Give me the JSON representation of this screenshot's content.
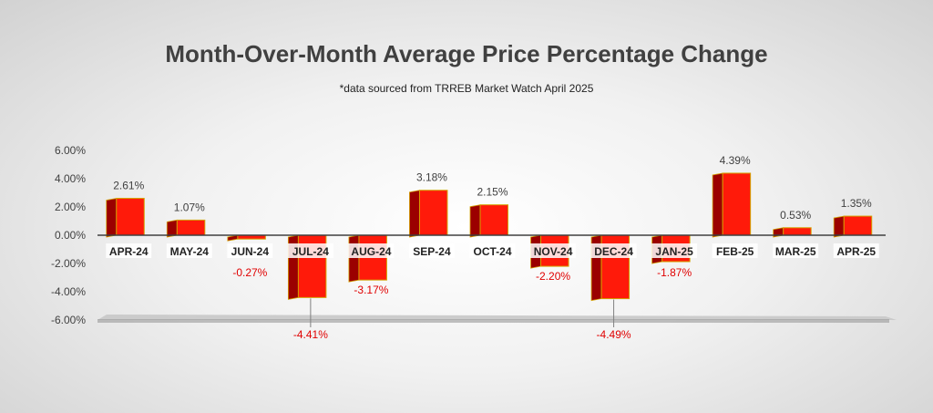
{
  "chart_data": {
    "type": "bar",
    "title": "Month-Over-Month Average Price Percentage Change",
    "subtitle": "*data sourced from TRREB Market Watch April 2025",
    "xlabel": "",
    "ylabel": "",
    "ylim": [
      -6,
      6
    ],
    "yticks": [
      6,
      4,
      2,
      0,
      -2,
      -4,
      -6
    ],
    "ytick_labels": [
      "6.00%",
      "4.00%",
      "2.00%",
      "0.00%",
      "-2.00%",
      "-4.00%",
      "-6.00%"
    ],
    "categories": [
      "APR-24",
      "MAY-24",
      "JUN-24",
      "JUL-24",
      "AUG-24",
      "SEP-24",
      "OCT-24",
      "NOV-24",
      "DEC-24",
      "JAN-25",
      "FEB-25",
      "MAR-25",
      "APR-25"
    ],
    "values": [
      2.61,
      1.07,
      -0.27,
      -4.41,
      -3.17,
      3.18,
      2.15,
      -2.2,
      -4.49,
      -1.87,
      4.39,
      0.53,
      1.35
    ],
    "value_labels": [
      "2.61%",
      "1.07%",
      "-0.27%",
      "-4.41%",
      "-3.17%",
      "3.18%",
      "2.15%",
      "-2.20%",
      "-4.49%",
      "-1.87%",
      "4.39%",
      "0.53%",
      "1.35%"
    ],
    "colors": {
      "bar": "#ff1a0a",
      "bar_side": "#9b0000",
      "bar_edge": "#d4a000",
      "positive_label": "#404040",
      "negative_label": "#e00000",
      "axis": "#404040",
      "floor": "#c8c8c8"
    }
  }
}
